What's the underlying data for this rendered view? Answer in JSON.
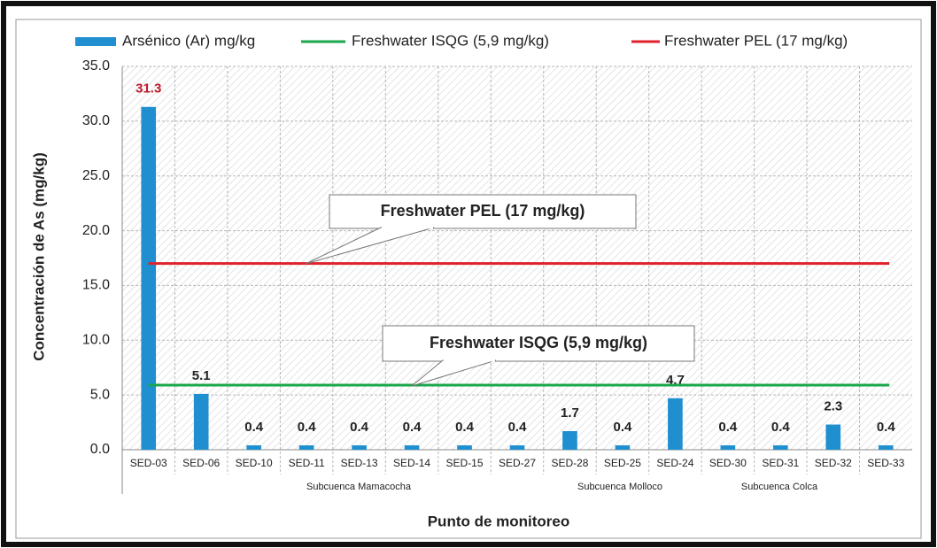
{
  "chart_data": {
    "type": "bar",
    "categories": [
      "SED-03",
      "SED-06",
      "SED-10",
      "SED-11",
      "SED-13",
      "SED-14",
      "SED-15",
      "SED-27",
      "SED-28",
      "SED-25",
      "SED-24",
      "SED-30",
      "SED-31",
      "SED-32",
      "SED-33"
    ],
    "series": [
      {
        "name": "Arsénico (Ar) mg/kg",
        "color": "#1f8fd0",
        "values": [
          31.3,
          5.1,
          0.4,
          0.4,
          0.4,
          0.4,
          0.4,
          0.4,
          1.7,
          0.4,
          4.7,
          0.4,
          0.4,
          2.3,
          0.4
        ]
      }
    ],
    "lines": [
      {
        "name": "Freshwater ISQG (5,9 mg/kg)",
        "value": 5.9,
        "color": "#1aa64a"
      },
      {
        "name": "Freshwater PEL (17 mg/kg)",
        "value": 17,
        "color": "#e0202a"
      }
    ],
    "annotations": [
      "Freshwater PEL (17 mg/kg)",
      "Freshwater ISQG (5,9 mg/kg)"
    ],
    "groups": [
      "Subcuenca Mamacocha",
      "Subcuenca Molloco",
      "Subcuenca Colca"
    ],
    "y_label": "Concentración de As (mg/kg)",
    "x_label": "Punto de monitoreo",
    "ylim": [
      0,
      35
    ],
    "yticks": [
      {
        "value": 0,
        "label": "0.0"
      },
      {
        "value": 5,
        "label": "5.0"
      },
      {
        "value": 10,
        "label": "10.0"
      },
      {
        "value": 15,
        "label": "15.0"
      },
      {
        "value": 20,
        "label": "20.0"
      },
      {
        "value": 25,
        "label": "25.0"
      },
      {
        "value": 30,
        "label": "30.0"
      },
      {
        "value": 35,
        "label": "35.0"
      }
    ],
    "grid": true
  }
}
